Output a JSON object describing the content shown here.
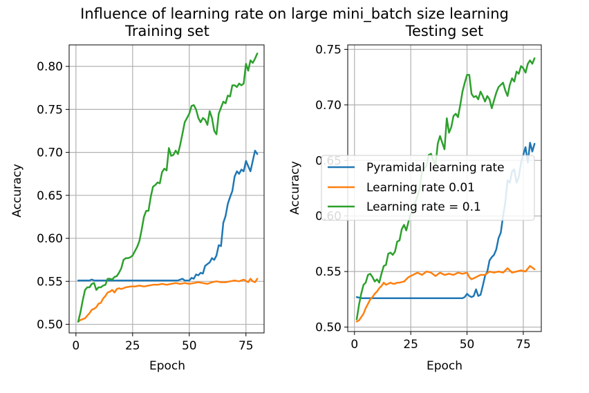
{
  "figure": {
    "suptitle": "Influence of learning rate on large mini_batch size learning"
  },
  "colors": {
    "pyramidal": "#1f77b4",
    "lr001": "#ff7f0e",
    "lr01": "#2ca02c",
    "grid": "#b0b0b0",
    "axis": "#000000"
  },
  "legend": {
    "placement": "center-left of testing subplot",
    "entries": [
      "Pyramidal learning rate",
      "Learning rate 0.01",
      "Learning rate = 0.1"
    ]
  },
  "chart_data": [
    {
      "type": "line",
      "title": "Training set",
      "xlabel": "Epoch",
      "ylabel": "Accuracy",
      "xlim": [
        -3,
        83
      ],
      "ylim": [
        0.49,
        0.825
      ],
      "xticks": [
        0,
        25,
        50,
        75
      ],
      "yticks": [
        0.5,
        0.55,
        0.6,
        0.65,
        0.7,
        0.75,
        0.8
      ],
      "ytick_labels": [
        "0.50",
        "0.55",
        "0.60",
        "0.65",
        "0.70",
        "0.75",
        "0.80"
      ],
      "grid": true,
      "series": [
        {
          "name": "Pyramidal learning rate",
          "color": "#1f77b4",
          "x": [
            1,
            4,
            6,
            7,
            8,
            10,
            12,
            15,
            20,
            25,
            30,
            35,
            40,
            45,
            47,
            48,
            49,
            50,
            51,
            52,
            53,
            54,
            55,
            56,
            57,
            58,
            59,
            60,
            61,
            62,
            63,
            64,
            65,
            66,
            67,
            68,
            69,
            70,
            71,
            72,
            73,
            74,
            75,
            76,
            77,
            78,
            79,
            80
          ],
          "y": [
            0.551,
            0.551,
            0.551,
            0.552,
            0.551,
            0.551,
            0.551,
            0.551,
            0.551,
            0.551,
            0.551,
            0.551,
            0.551,
            0.551,
            0.553,
            0.551,
            0.551,
            0.551,
            0.554,
            0.553,
            0.558,
            0.557,
            0.56,
            0.559,
            0.568,
            0.57,
            0.572,
            0.577,
            0.575,
            0.58,
            0.592,
            0.591,
            0.618,
            0.626,
            0.64,
            0.648,
            0.655,
            0.672,
            0.678,
            0.675,
            0.68,
            0.678,
            0.69,
            0.684,
            0.678,
            0.69,
            0.702,
            0.698
          ]
        },
        {
          "name": "Learning rate 0.01",
          "color": "#ff7f0e",
          "x": [
            1,
            2,
            3,
            4,
            5,
            6,
            7,
            8,
            9,
            10,
            11,
            12,
            13,
            14,
            15,
            16,
            17,
            18,
            19,
            20,
            22,
            24,
            26,
            28,
            30,
            32,
            34,
            36,
            38,
            40,
            42,
            44,
            46,
            48,
            50,
            52,
            54,
            56,
            58,
            60,
            62,
            64,
            66,
            68,
            70,
            72,
            74,
            76,
            77,
            78,
            79,
            80
          ],
          "y": [
            0.503,
            0.505,
            0.506,
            0.507,
            0.51,
            0.513,
            0.517,
            0.518,
            0.52,
            0.524,
            0.525,
            0.53,
            0.533,
            0.537,
            0.538,
            0.54,
            0.537,
            0.541,
            0.542,
            0.541,
            0.543,
            0.544,
            0.544,
            0.545,
            0.544,
            0.545,
            0.546,
            0.546,
            0.547,
            0.546,
            0.547,
            0.548,
            0.547,
            0.548,
            0.547,
            0.548,
            0.549,
            0.548,
            0.547,
            0.549,
            0.55,
            0.549,
            0.549,
            0.55,
            0.551,
            0.55,
            0.552,
            0.549,
            0.553,
            0.55,
            0.549,
            0.553
          ]
        },
        {
          "name": "Learning rate = 0.1",
          "color": "#2ca02c",
          "x": [
            1,
            2,
            3,
            4,
            5,
            6,
            7,
            8,
            9,
            10,
            11,
            12,
            13,
            14,
            15,
            16,
            17,
            18,
            19,
            20,
            21,
            22,
            23,
            24,
            25,
            26,
            27,
            28,
            29,
            30,
            31,
            32,
            33,
            34,
            35,
            36,
            37,
            38,
            39,
            40,
            41,
            42,
            43,
            44,
            45,
            46,
            47,
            48,
            49,
            50,
            51,
            52,
            53,
            54,
            55,
            56,
            57,
            58,
            59,
            60,
            61,
            62,
            63,
            64,
            65,
            66,
            67,
            68,
            69,
            70,
            71,
            72,
            73,
            74,
            75,
            76,
            77,
            78,
            79,
            80
          ],
          "y": [
            0.503,
            0.514,
            0.528,
            0.54,
            0.543,
            0.543,
            0.547,
            0.548,
            0.54,
            0.543,
            0.543,
            0.545,
            0.546,
            0.553,
            0.553,
            0.552,
            0.555,
            0.556,
            0.56,
            0.565,
            0.575,
            0.577,
            0.577,
            0.578,
            0.58,
            0.585,
            0.59,
            0.597,
            0.61,
            0.625,
            0.632,
            0.632,
            0.648,
            0.66,
            0.662,
            0.665,
            0.664,
            0.677,
            0.681,
            0.679,
            0.705,
            0.696,
            0.697,
            0.702,
            0.698,
            0.709,
            0.722,
            0.735,
            0.74,
            0.745,
            0.754,
            0.755,
            0.75,
            0.74,
            0.735,
            0.74,
            0.738,
            0.732,
            0.748,
            0.74,
            0.725,
            0.721,
            0.745,
            0.752,
            0.759,
            0.757,
            0.766,
            0.765,
            0.778,
            0.778,
            0.776,
            0.78,
            0.778,
            0.78,
            0.803,
            0.795,
            0.807,
            0.804,
            0.809,
            0.815
          ]
        }
      ]
    },
    {
      "type": "line",
      "title": "Testing set",
      "xlabel": "Epoch",
      "ylabel": "Accuracy",
      "xlim": [
        -3,
        83
      ],
      "ylim": [
        0.496,
        0.754
      ],
      "xticks": [
        0,
        25,
        50,
        75
      ],
      "yticks": [
        0.5,
        0.55,
        0.6,
        0.65,
        0.7,
        0.75
      ],
      "ytick_labels": [
        "0.50",
        "0.55",
        "0.60",
        "0.65",
        "0.70",
        "0.75"
      ],
      "grid": true,
      "series": [
        {
          "name": "Pyramidal learning rate",
          "color": "#1f77b4",
          "x": [
            1,
            3,
            5,
            10,
            15,
            20,
            25,
            30,
            35,
            40,
            45,
            48,
            49,
            50,
            51,
            52,
            53,
            54,
            55,
            56,
            57,
            58,
            59,
            60,
            61,
            62,
            63,
            64,
            65,
            66,
            67,
            68,
            69,
            70,
            71,
            72,
            73,
            74,
            75,
            76,
            77,
            78,
            79,
            80
          ],
          "y": [
            0.527,
            0.526,
            0.526,
            0.526,
            0.526,
            0.526,
            0.526,
            0.526,
            0.526,
            0.526,
            0.526,
            0.526,
            0.527,
            0.53,
            0.528,
            0.527,
            0.528,
            0.534,
            0.528,
            0.529,
            0.537,
            0.546,
            0.55,
            0.56,
            0.563,
            0.565,
            0.57,
            0.58,
            0.585,
            0.6,
            0.612,
            0.632,
            0.63,
            0.64,
            0.642,
            0.63,
            0.635,
            0.648,
            0.655,
            0.662,
            0.648,
            0.666,
            0.658,
            0.665
          ]
        },
        {
          "name": "Learning rate 0.01",
          "color": "#ff7f0e",
          "x": [
            1,
            2,
            3,
            4,
            5,
            6,
            7,
            8,
            9,
            10,
            11,
            12,
            13,
            14,
            15,
            16,
            17,
            18,
            19,
            20,
            22,
            24,
            26,
            28,
            30,
            32,
            34,
            36,
            38,
            40,
            42,
            44,
            46,
            48,
            50,
            51,
            52,
            54,
            56,
            58,
            60,
            62,
            64,
            66,
            68,
            70,
            72,
            74,
            76,
            78,
            80
          ],
          "y": [
            0.505,
            0.506,
            0.509,
            0.512,
            0.517,
            0.521,
            0.525,
            0.527,
            0.53,
            0.532,
            0.535,
            0.537,
            0.54,
            0.538,
            0.539,
            0.54,
            0.539,
            0.539,
            0.54,
            0.54,
            0.541,
            0.545,
            0.547,
            0.549,
            0.547,
            0.55,
            0.549,
            0.546,
            0.549,
            0.547,
            0.548,
            0.547,
            0.549,
            0.548,
            0.549,
            0.545,
            0.543,
            0.545,
            0.547,
            0.547,
            0.55,
            0.549,
            0.55,
            0.549,
            0.553,
            0.549,
            0.55,
            0.551,
            0.55,
            0.555,
            0.552
          ]
        },
        {
          "name": "Learning rate = 0.1",
          "color": "#2ca02c",
          "x": [
            1,
            2,
            3,
            4,
            5,
            6,
            7,
            8,
            9,
            10,
            11,
            12,
            13,
            14,
            15,
            16,
            17,
            18,
            19,
            20,
            21,
            22,
            23,
            24,
            25,
            26,
            27,
            28,
            29,
            30,
            31,
            32,
            33,
            34,
            35,
            36,
            37,
            38,
            39,
            40,
            41,
            42,
            43,
            44,
            45,
            46,
            47,
            48,
            49,
            50,
            51,
            52,
            53,
            54,
            55,
            56,
            57,
            58,
            59,
            60,
            61,
            62,
            63,
            64,
            65,
            66,
            67,
            68,
            69,
            70,
            71,
            72,
            73,
            74,
            75,
            76,
            77,
            78,
            79,
            80
          ],
          "y": [
            0.507,
            0.52,
            0.53,
            0.538,
            0.54,
            0.547,
            0.548,
            0.545,
            0.541,
            0.543,
            0.54,
            0.548,
            0.555,
            0.556,
            0.566,
            0.567,
            0.565,
            0.568,
            0.577,
            0.578,
            0.588,
            0.592,
            0.587,
            0.595,
            0.602,
            0.605,
            0.612,
            0.618,
            0.625,
            0.64,
            0.643,
            0.645,
            0.655,
            0.656,
            0.65,
            0.645,
            0.665,
            0.672,
            0.666,
            0.66,
            0.688,
            0.675,
            0.68,
            0.69,
            0.692,
            0.689,
            0.7,
            0.712,
            0.72,
            0.727,
            0.727,
            0.71,
            0.707,
            0.708,
            0.705,
            0.712,
            0.708,
            0.703,
            0.708,
            0.705,
            0.697,
            0.704,
            0.711,
            0.716,
            0.718,
            0.72,
            0.713,
            0.708,
            0.718,
            0.724,
            0.721,
            0.73,
            0.728,
            0.735,
            0.733,
            0.729,
            0.737,
            0.74,
            0.737,
            0.742
          ]
        }
      ]
    }
  ]
}
